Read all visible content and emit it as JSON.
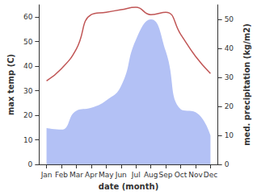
{
  "chart_data": {
    "type": "line",
    "x_label": "date (month)",
    "y_label": "max temp (C)",
    "y2_label": "med. precipitation (kg/m2)",
    "categories": [
      "Jan",
      "Feb",
      "Mar",
      "Apr",
      "May",
      "Jun",
      "Jul",
      "Aug",
      "Sep",
      "Oct",
      "Nov",
      "Dec"
    ],
    "series": [
      {
        "name": "med. precipitation",
        "type": "area",
        "axis": "y2",
        "color": "#b3c1f5",
        "values": [
          12.5,
          12,
          18.5,
          19.5,
          22,
          27,
          43,
          50,
          39,
          19,
          18,
          10
        ]
      },
      {
        "name": "max temp",
        "type": "line",
        "color": "#c05555",
        "values": [
          34,
          39,
          47,
          61,
          62,
          63,
          64,
          61,
          62,
          53,
          44,
          37
        ]
      }
    ],
    "ylim": [
      0,
      65
    ],
    "yticks": [
      0,
      10,
      20,
      30,
      40,
      50,
      60
    ],
    "y2lim": [
      0,
      55
    ],
    "y2ticks": [
      0,
      10,
      20,
      30,
      40,
      50
    ],
    "grid": false
  }
}
